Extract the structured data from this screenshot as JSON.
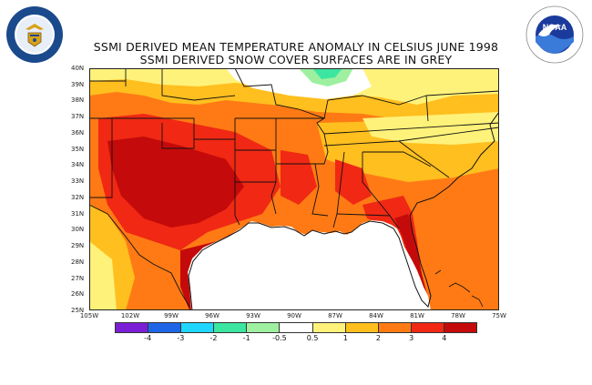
{
  "title_line1": "SSMI DERIVED MEAN TEMPERATURE ANOMALY IN CELSIUS JUNE 1998",
  "title_line2": "SSMI DERIVED SNOW COVER SURFACES ARE IN GREY",
  "left_logo": {
    "name": "department-of-commerce-seal",
    "text": "DEPARTMENT OF COMMERCE · UNITED STATES OF AMERICA"
  },
  "right_logo": {
    "name": "noaa-logo",
    "text": "NOAA"
  },
  "map": {
    "lon_range": [
      -105,
      -75
    ],
    "lat_range": [
      25,
      40
    ],
    "x_ticks": [
      "105W",
      "102W",
      "99W",
      "96W",
      "93W",
      "90W",
      "87W",
      "84W",
      "81W",
      "78W",
      "75W"
    ],
    "y_ticks": [
      "25N",
      "26N",
      "27N",
      "28N",
      "29N",
      "30N",
      "31N",
      "32N",
      "33N",
      "34N",
      "35N",
      "36N",
      "37N",
      "38N",
      "39N",
      "40N"
    ]
  },
  "legend": {
    "colors": [
      "#7a1fd6",
      "#1f66e6",
      "#1fd6ff",
      "#3ce6a0",
      "#9ef0a0",
      "#ffffff",
      "#fff27a",
      "#ffbf1f",
      "#ff7a14",
      "#f02814",
      "#c40a0a"
    ],
    "labels": [
      "-4",
      "-3",
      "-2",
      "-1",
      "-0.5",
      "0.5",
      "1",
      "2",
      "3",
      "4"
    ]
  }
}
